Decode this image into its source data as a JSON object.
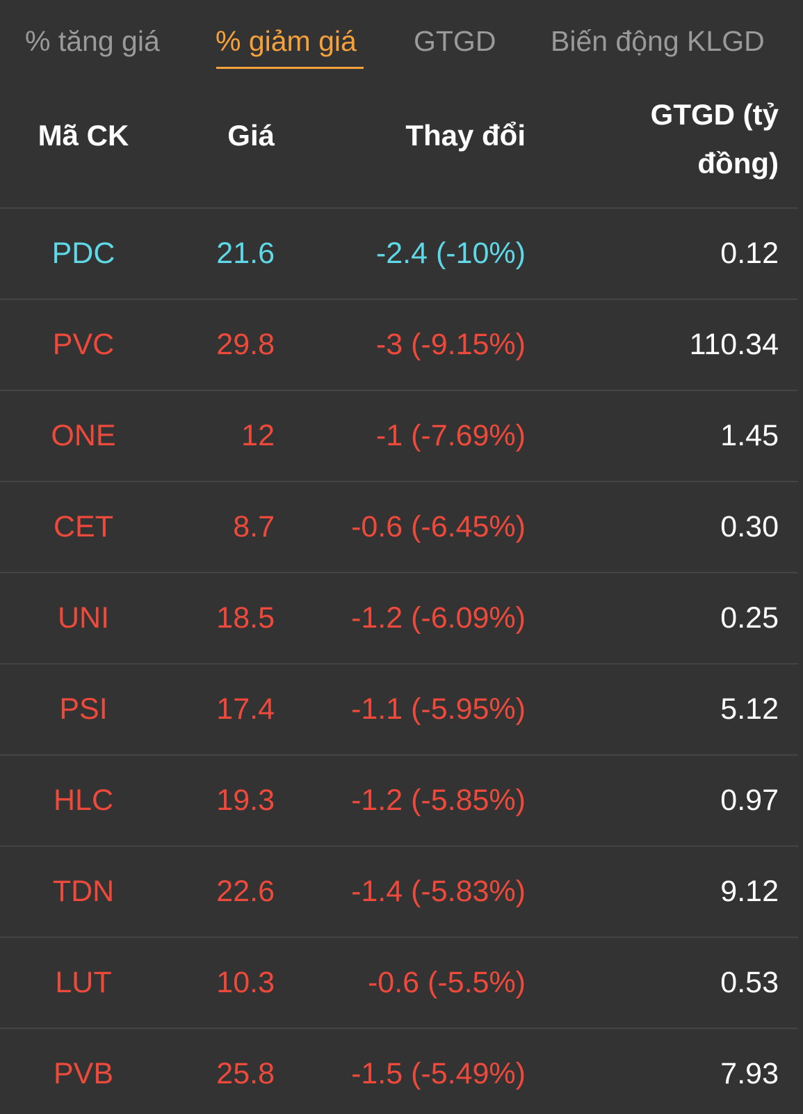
{
  "colors": {
    "background": "#333333",
    "active_tab": "#f5a13c",
    "inactive_tab": "#9a9a9a",
    "floor_price": "#5fd8e8",
    "down": "#ee4a3c",
    "value_text": "#ffffff"
  },
  "tabs": [
    {
      "label": "% tăng giá",
      "active": false
    },
    {
      "label": "% giảm giá",
      "active": true
    },
    {
      "label": "GTGD",
      "active": false
    },
    {
      "label": "Biến động KLGD",
      "active": false
    }
  ],
  "table": {
    "headers": {
      "symbol": "Mã CK",
      "price": "Giá",
      "change": "Thay đổi",
      "value_line1": "GTGD (tỷ",
      "value_line2": "đồng)"
    },
    "rows": [
      {
        "symbol": "PDC",
        "price": "21.6",
        "change": "-2.4 (-10%)",
        "value": "0.12",
        "status": "floor"
      },
      {
        "symbol": "PVC",
        "price": "29.8",
        "change": "-3 (-9.15%)",
        "value": "110.34",
        "status": "down"
      },
      {
        "symbol": "ONE",
        "price": "12",
        "change": "-1 (-7.69%)",
        "value": "1.45",
        "status": "down"
      },
      {
        "symbol": "CET",
        "price": "8.7",
        "change": "-0.6 (-6.45%)",
        "value": "0.30",
        "status": "down"
      },
      {
        "symbol": "UNI",
        "price": "18.5",
        "change": "-1.2 (-6.09%)",
        "value": "0.25",
        "status": "down"
      },
      {
        "symbol": "PSI",
        "price": "17.4",
        "change": "-1.1 (-5.95%)",
        "value": "5.12",
        "status": "down"
      },
      {
        "symbol": "HLC",
        "price": "19.3",
        "change": "-1.2 (-5.85%)",
        "value": "0.97",
        "status": "down"
      },
      {
        "symbol": "TDN",
        "price": "22.6",
        "change": "-1.4 (-5.83%)",
        "value": "9.12",
        "status": "down"
      },
      {
        "symbol": "LUT",
        "price": "10.3",
        "change": "-0.6 (-5.5%)",
        "value": "0.53",
        "status": "down"
      },
      {
        "symbol": "PVB",
        "price": "25.8",
        "change": "-1.5 (-5.49%)",
        "value": "7.93",
        "status": "down"
      }
    ]
  }
}
